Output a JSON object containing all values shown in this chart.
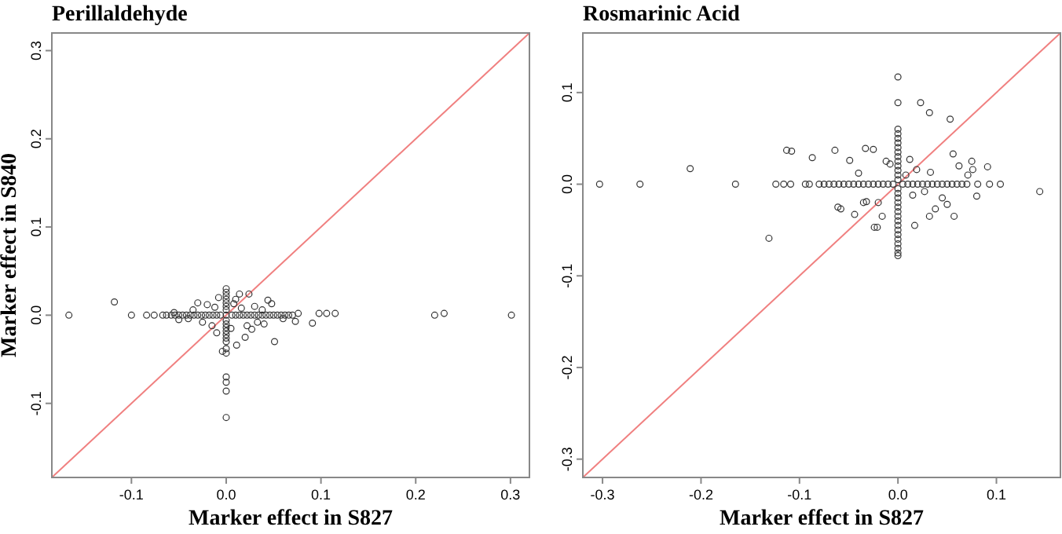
{
  "chart_data": [
    {
      "type": "scatter",
      "title": "Perillaldehyde",
      "xlabel": "Marker effect in S827",
      "ylabel": "Marker effect in S840",
      "xlim": [
        -0.184,
        0.32
      ],
      "ylim": [
        -0.184,
        0.32
      ],
      "xticks": [
        {
          "value": -0.1,
          "label": "-0.1"
        },
        {
          "value": 0,
          "label": "0.0"
        },
        {
          "value": 0.1,
          "label": "0.1"
        },
        {
          "value": 0.2,
          "label": "0.2"
        },
        {
          "value": 0.3,
          "label": "0.3"
        }
      ],
      "yticks": [
        {
          "value": -0.1,
          "label": "-0.1"
        },
        {
          "value": 0,
          "label": "0.0"
        },
        {
          "value": 0.1,
          "label": "0.1"
        },
        {
          "value": 0.2,
          "label": "0.2"
        },
        {
          "value": 0.3,
          "label": "0.3"
        }
      ],
      "grid": false,
      "series": [
        {
          "type": "line",
          "marker": "none",
          "color": "#f08080",
          "x": [
            -0.184,
            0.32
          ],
          "values": [
            -0.184,
            0.32
          ]
        },
        {
          "marker": "circle",
          "color": "#333333",
          "x": [
            0,
            0,
            0,
            0,
            0,
            0,
            0,
            0,
            0,
            0,
            0,
            0,
            0,
            0,
            0,
            0,
            0,
            0,
            0,
            0,
            -0.166,
            -0.1,
            -0.084,
            -0.076,
            -0.067,
            -0.063,
            -0.058,
            -0.054,
            -0.05,
            -0.046,
            -0.042,
            -0.038,
            -0.034,
            -0.03,
            -0.026,
            -0.022,
            -0.018,
            -0.014,
            -0.01,
            -0.006,
            0,
            0.006,
            0.01,
            0.014,
            0.018,
            0.022,
            0.026,
            0.03,
            0.034,
            0.038,
            0.042,
            0.046,
            0.05,
            0.054,
            0.058,
            0.062,
            0.066,
            0.07,
            0.22,
            0.301,
            -0.118,
            0.098,
            0.106,
            0.115,
            0.23,
            0.091,
            0.076,
            0.073,
            0.051,
            0.044,
            0.024,
            0.014,
            -0.03,
            -0.05,
            -0.004,
            0.011,
            0.02,
            -0.02,
            -0.012,
            0.008,
            0.016,
            0.03,
            0.038,
            -0.025,
            -0.015,
            0.005,
            0.022,
            0.033,
            -0.035,
            -0.04,
            0.01,
            -0.008,
            0.048,
            0.027,
            -0.01,
            0.04,
            0.06,
            -0.055
          ],
          "values": [
            0.03,
            0.026,
            0.022,
            0.018,
            0.014,
            0.01,
            0.006,
            -0.006,
            -0.01,
            -0.014,
            -0.018,
            -0.022,
            -0.026,
            -0.03,
            -0.038,
            -0.043,
            -0.07,
            -0.076,
            -0.086,
            -0.116,
            0,
            0,
            0,
            0,
            0,
            0,
            0,
            0,
            0,
            0,
            0,
            0,
            0,
            0,
            0,
            0,
            0,
            0,
            0,
            0,
            0,
            0,
            0,
            0,
            0,
            0,
            0,
            0,
            0,
            0,
            0,
            0,
            0,
            0,
            0,
            0,
            0,
            0,
            0,
            0,
            0.015,
            0.002,
            0.002,
            0.002,
            0.002,
            -0.009,
            0.002,
            -0.007,
            -0.03,
            0.017,
            0.024,
            0.024,
            0.014,
            -0.005,
            -0.041,
            -0.034,
            -0.025,
            0.012,
            0.009,
            0.013,
            0.008,
            0.01,
            0.006,
            -0.008,
            -0.012,
            -0.015,
            -0.012,
            -0.008,
            0.006,
            -0.004,
            0.018,
            0.02,
            0.013,
            -0.016,
            -0.02,
            -0.01,
            -0.004,
            0.003
          ]
        }
      ]
    },
    {
      "type": "scatter",
      "title": "Rosmarinic Acid",
      "xlabel": "Marker effect in S827",
      "xlim": [
        -0.32,
        0.165
      ],
      "ylim": [
        -0.32,
        0.165
      ],
      "xticks": [
        {
          "value": -0.3,
          "label": "-0.3"
        },
        {
          "value": -0.2,
          "label": "-0.2"
        },
        {
          "value": -0.1,
          "label": "-0.1"
        },
        {
          "value": 0,
          "label": "0.0"
        },
        {
          "value": 0.1,
          "label": "0.1"
        }
      ],
      "yticks": [
        {
          "value": -0.3,
          "label": "-0.3"
        },
        {
          "value": -0.2,
          "label": "-0.2"
        },
        {
          "value": -0.1,
          "label": "-0.1"
        },
        {
          "value": 0,
          "label": "0.0"
        },
        {
          "value": 0.1,
          "label": "0.1"
        }
      ],
      "grid": false,
      "series": [
        {
          "type": "line",
          "marker": "none",
          "color": "#f08080",
          "x": [
            -0.32,
            0.165
          ],
          "values": [
            -0.32,
            0.165
          ]
        },
        {
          "marker": "circle",
          "color": "#333333",
          "x": [
            0,
            0,
            0,
            0,
            0,
            0,
            0,
            0,
            0,
            0,
            0,
            0,
            0,
            0,
            0,
            0,
            0,
            0,
            0,
            0,
            0,
            0,
            0,
            0,
            0,
            0,
            0,
            0,
            0,
            0,
            -0.303,
            -0.262,
            -0.165,
            -0.124,
            -0.116,
            -0.109,
            -0.094,
            -0.09,
            -0.08,
            -0.075,
            -0.07,
            -0.065,
            -0.06,
            -0.055,
            -0.05,
            -0.045,
            -0.04,
            -0.035,
            -0.03,
            -0.025,
            -0.02,
            -0.015,
            -0.01,
            -0.005,
            0.005,
            0.01,
            0.015,
            0.02,
            0.025,
            0.03,
            0.035,
            0.04,
            0.045,
            0.05,
            0.055,
            0.06,
            0.065,
            0.07,
            0.081,
            0.093,
            0.104,
            -0.211,
            -0.131,
            -0.113,
            -0.108,
            -0.087,
            -0.064,
            0.023,
            0.032,
            0.053,
            0.144,
            0.091,
            0.08,
            0.057,
            0.017,
            -0.024,
            -0.021,
            -0.058,
            -0.061,
            -0.049,
            -0.025,
            -0.033,
            0.056,
            0.075,
            0.076,
            0.071,
            0.027,
            0.038,
            0.032,
            -0.044,
            -0.016,
            -0.032,
            -0.012,
            0.012,
            0.019,
            0.033,
            -0.04,
            -0.035,
            0.045,
            0.062,
            -0.02,
            0.008,
            0.015,
            -0.008,
            0.05
          ],
          "values": [
            0.06,
            0.055,
            0.05,
            0.045,
            0.04,
            0.035,
            0.03,
            0.025,
            0.02,
            0.015,
            0.01,
            0.005,
            -0.005,
            -0.01,
            -0.015,
            -0.02,
            -0.025,
            -0.03,
            -0.035,
            -0.04,
            -0.045,
            -0.05,
            -0.055,
            -0.06,
            -0.065,
            -0.07,
            -0.075,
            -0.078,
            0.089,
            0.117,
            0,
            0,
            0,
            0,
            0,
            0,
            0,
            0,
            0,
            0,
            0,
            0,
            0,
            0,
            0,
            0,
            0,
            0,
            0,
            0,
            0,
            0,
            0,
            0,
            0,
            0,
            0,
            0,
            0,
            0,
            0,
            0,
            0,
            0,
            0,
            0,
            0,
            0,
            0,
            0,
            0,
            0.017,
            -0.059,
            0.037,
            0.036,
            0.029,
            0.037,
            0.089,
            0.078,
            0.071,
            -0.008,
            0.019,
            -0.013,
            -0.035,
            -0.045,
            -0.047,
            -0.047,
            -0.027,
            -0.025,
            0.026,
            0.038,
            0.039,
            0.033,
            0.025,
            0.016,
            0.01,
            -0.008,
            -0.027,
            -0.035,
            -0.033,
            -0.035,
            -0.019,
            0.025,
            0.027,
            0.016,
            0.013,
            0.012,
            -0.02,
            -0.015,
            0.02,
            -0.02,
            0.01,
            -0.012,
            0.022,
            -0.022
          ]
        }
      ]
    }
  ]
}
